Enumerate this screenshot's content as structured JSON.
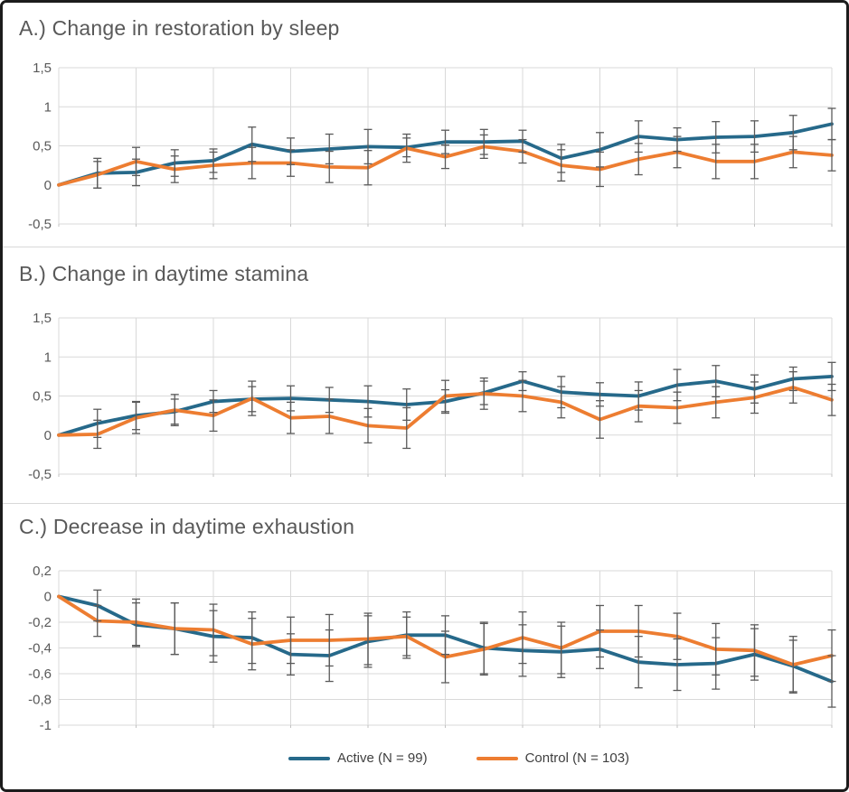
{
  "legend": {
    "items": [
      {
        "name": "active",
        "label": "Active (N = 99)",
        "color": "#26698A"
      },
      {
        "name": "control",
        "label": "Control (N = 103)",
        "color": "#ED7D31"
      }
    ]
  },
  "chart_data": [
    {
      "id": "A",
      "type": "line",
      "title": "A.) Change in restoration by sleep",
      "ylim": [
        -0.5,
        1.5
      ],
      "grid": true,
      "grid_color": "#D9D9D9",
      "grid_x_step": 2,
      "n_points": 21,
      "xtick_labels": [],
      "error_bar_color": "#5A5A5A",
      "yticks": [
        {
          "value": 1.5,
          "label": "1,5"
        },
        {
          "value": 1,
          "label": "1"
        },
        {
          "value": 0.5,
          "label": "0,5"
        },
        {
          "value": 0,
          "label": "0"
        },
        {
          "value": -0.5,
          "label": "-0,5"
        }
      ],
      "series": [
        {
          "name": "Active (N = 99)",
          "color": "#26698A",
          "values": [
            0,
            0.15,
            0.16,
            0.28,
            0.31,
            0.52,
            0.43,
            0.46,
            0.49,
            0.48,
            0.55,
            0.55,
            0.56,
            0.34,
            0.45,
            0.62,
            0.58,
            0.61,
            0.62,
            0.67,
            0.78
          ],
          "errors": [
            0,
            0.19,
            0.17,
            0.17,
            0.15,
            0.22,
            0.17,
            0.19,
            0.22,
            0.12,
            0.15,
            0.16,
            0.14,
            0.18,
            0.22,
            0.2,
            0.15,
            0.2,
            0.2,
            0.22,
            0.2
          ]
        },
        {
          "name": "Control (N = 103)",
          "color": "#ED7D31",
          "values": [
            0,
            0.13,
            0.3,
            0.2,
            0.25,
            0.28,
            0.28,
            0.23,
            0.22,
            0.47,
            0.36,
            0.49,
            0.43,
            0.25,
            0.2,
            0.33,
            0.42,
            0.3,
            0.3,
            0.42,
            0.38
          ],
          "errors": [
            0,
            0.17,
            0.18,
            0.17,
            0.17,
            0.2,
            0.17,
            0.2,
            0.22,
            0.18,
            0.15,
            0.15,
            0.15,
            0.2,
            0.22,
            0.2,
            0.2,
            0.22,
            0.22,
            0.2,
            0.2
          ]
        }
      ]
    },
    {
      "id": "B",
      "type": "line",
      "title": "B.) Change in daytime stamina",
      "ylim": [
        -0.5,
        1.5
      ],
      "grid": true,
      "grid_color": "#D9D9D9",
      "grid_x_step": 2,
      "n_points": 21,
      "xtick_labels": [],
      "error_bar_color": "#5A5A5A",
      "yticks": [
        {
          "value": 1.5,
          "label": "1,5"
        },
        {
          "value": 1,
          "label": "1"
        },
        {
          "value": 0.5,
          "label": "0,5"
        },
        {
          "value": 0,
          "label": "0"
        },
        {
          "value": -0.5,
          "label": "-0,5"
        }
      ],
      "series": [
        {
          "name": "Active (N = 99)",
          "color": "#26698A",
          "values": [
            0,
            0.15,
            0.25,
            0.3,
            0.43,
            0.46,
            0.47,
            0.45,
            0.43,
            0.39,
            0.43,
            0.54,
            0.69,
            0.55,
            0.52,
            0.5,
            0.64,
            0.69,
            0.59,
            0.72,
            0.75
          ],
          "errors": [
            0,
            0.18,
            0.18,
            0.16,
            0.14,
            0.16,
            0.16,
            0.16,
            0.2,
            0.2,
            0.15,
            0.15,
            0.12,
            0.2,
            0.15,
            0.18,
            0.2,
            0.2,
            0.18,
            0.15,
            0.18
          ]
        },
        {
          "name": "Control (N = 103)",
          "color": "#ED7D31",
          "values": [
            0,
            0.01,
            0.22,
            0.32,
            0.25,
            0.47,
            0.22,
            0.24,
            0.12,
            0.09,
            0.5,
            0.53,
            0.5,
            0.42,
            0.2,
            0.37,
            0.35,
            0.42,
            0.48,
            0.61,
            0.45
          ],
          "errors": [
            0,
            0.18,
            0.2,
            0.2,
            0.2,
            0.22,
            0.2,
            0.22,
            0.22,
            0.26,
            0.2,
            0.2,
            0.2,
            0.2,
            0.24,
            0.2,
            0.2,
            0.2,
            0.2,
            0.2,
            0.2
          ]
        }
      ]
    },
    {
      "id": "C",
      "type": "line",
      "title": "C.) Decrease in daytime exhaustion",
      "ylim": [
        -1.0,
        0.2
      ],
      "grid": true,
      "grid_color": "#D9D9D9",
      "grid_x_step": 2,
      "n_points": 21,
      "xtick_labels": [],
      "error_bar_color": "#5A5A5A",
      "yticks": [
        {
          "value": 0.2,
          "label": "0,2"
        },
        {
          "value": 0,
          "label": "0"
        },
        {
          "value": -0.2,
          "label": "-0,2"
        },
        {
          "value": -0.4,
          "label": "-0,4"
        },
        {
          "value": -0.6,
          "label": "-0,6"
        },
        {
          "value": -0.8,
          "label": "-0,8"
        },
        {
          "value": -1,
          "label": "-1"
        }
      ],
      "series": [
        {
          "name": "Active (N = 99)",
          "color": "#26698A",
          "values": [
            0,
            -0.07,
            -0.22,
            -0.25,
            -0.31,
            -0.32,
            -0.45,
            -0.46,
            -0.35,
            -0.3,
            -0.3,
            -0.4,
            -0.42,
            -0.43,
            -0.41,
            -0.51,
            -0.53,
            -0.52,
            -0.45,
            -0.54,
            -0.66
          ],
          "errors": [
            0,
            0.12,
            0.17,
            0.2,
            0.2,
            0.2,
            0.16,
            0.2,
            0.2,
            0.18,
            0.15,
            0.2,
            0.2,
            0.2,
            0.15,
            0.2,
            0.2,
            0.2,
            0.2,
            0.2,
            0.2
          ]
        },
        {
          "name": "Control (N = 103)",
          "color": "#ED7D31",
          "values": [
            0,
            -0.19,
            -0.2,
            -0.25,
            -0.26,
            -0.37,
            -0.34,
            -0.34,
            -0.33,
            -0.31,
            -0.47,
            -0.41,
            -0.32,
            -0.4,
            -0.27,
            -0.27,
            -0.31,
            -0.41,
            -0.42,
            -0.53,
            -0.46
          ],
          "errors": [
            0,
            0.12,
            0.18,
            0.2,
            0.2,
            0.2,
            0.18,
            0.2,
            0.2,
            0.15,
            0.2,
            0.2,
            0.2,
            0.2,
            0.2,
            0.2,
            0.18,
            0.2,
            0.2,
            0.22,
            0.2
          ]
        }
      ]
    }
  ]
}
